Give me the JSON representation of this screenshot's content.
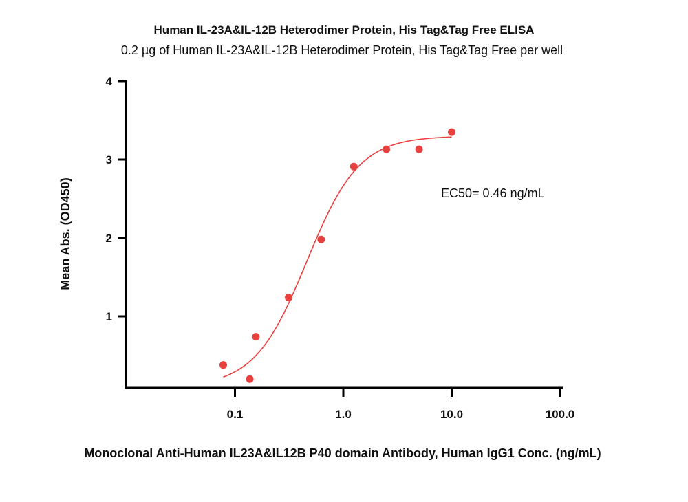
{
  "chart_data": {
    "type": "scatter",
    "title": "Human IL-23A&IL-12B Heterodimer Protein, His Tag&Tag Free ELISA",
    "subtitle": "0.2 µg of Human IL-23A&IL-12B Heterodimer Protein, His Tag&Tag Free per well",
    "xlabel": "Monoclonal Anti-Human IL23A&IL12B P40 domain Antibody, Human IgG1 Conc. (ng/mL)",
    "ylabel": "Mean Abs. (OD450)",
    "x_scale": "log",
    "xlim": [
      0.01,
      100
    ],
    "ylim": [
      0,
      4
    ],
    "x_ticks": [
      0.1,
      1.0,
      10.0,
      100.0
    ],
    "x_tick_labels": [
      "0.1",
      "1.0",
      "10.0",
      "100.0"
    ],
    "y_ticks": [
      1,
      2,
      3,
      4
    ],
    "y_tick_labels": [
      "1",
      "2",
      "3",
      "4"
    ],
    "grid": false,
    "color": "#e8403f",
    "series": [
      {
        "x": [
          0.078,
          0.137,
          0.156,
          0.313,
          0.625,
          1.25,
          2.5,
          5.0,
          10.0
        ],
        "y": [
          0.38,
          0.2,
          0.74,
          1.24,
          1.98,
          2.91,
          3.13,
          3.13,
          3.35
        ]
      }
    ],
    "fit": {
      "model": "4PL",
      "bottom": 0.1,
      "top": 3.3,
      "ec50": 0.46,
      "hill": 1.8,
      "x_range": [
        0.078,
        10.0
      ]
    },
    "annotation": "EC50= 0.46 ng/mL"
  }
}
